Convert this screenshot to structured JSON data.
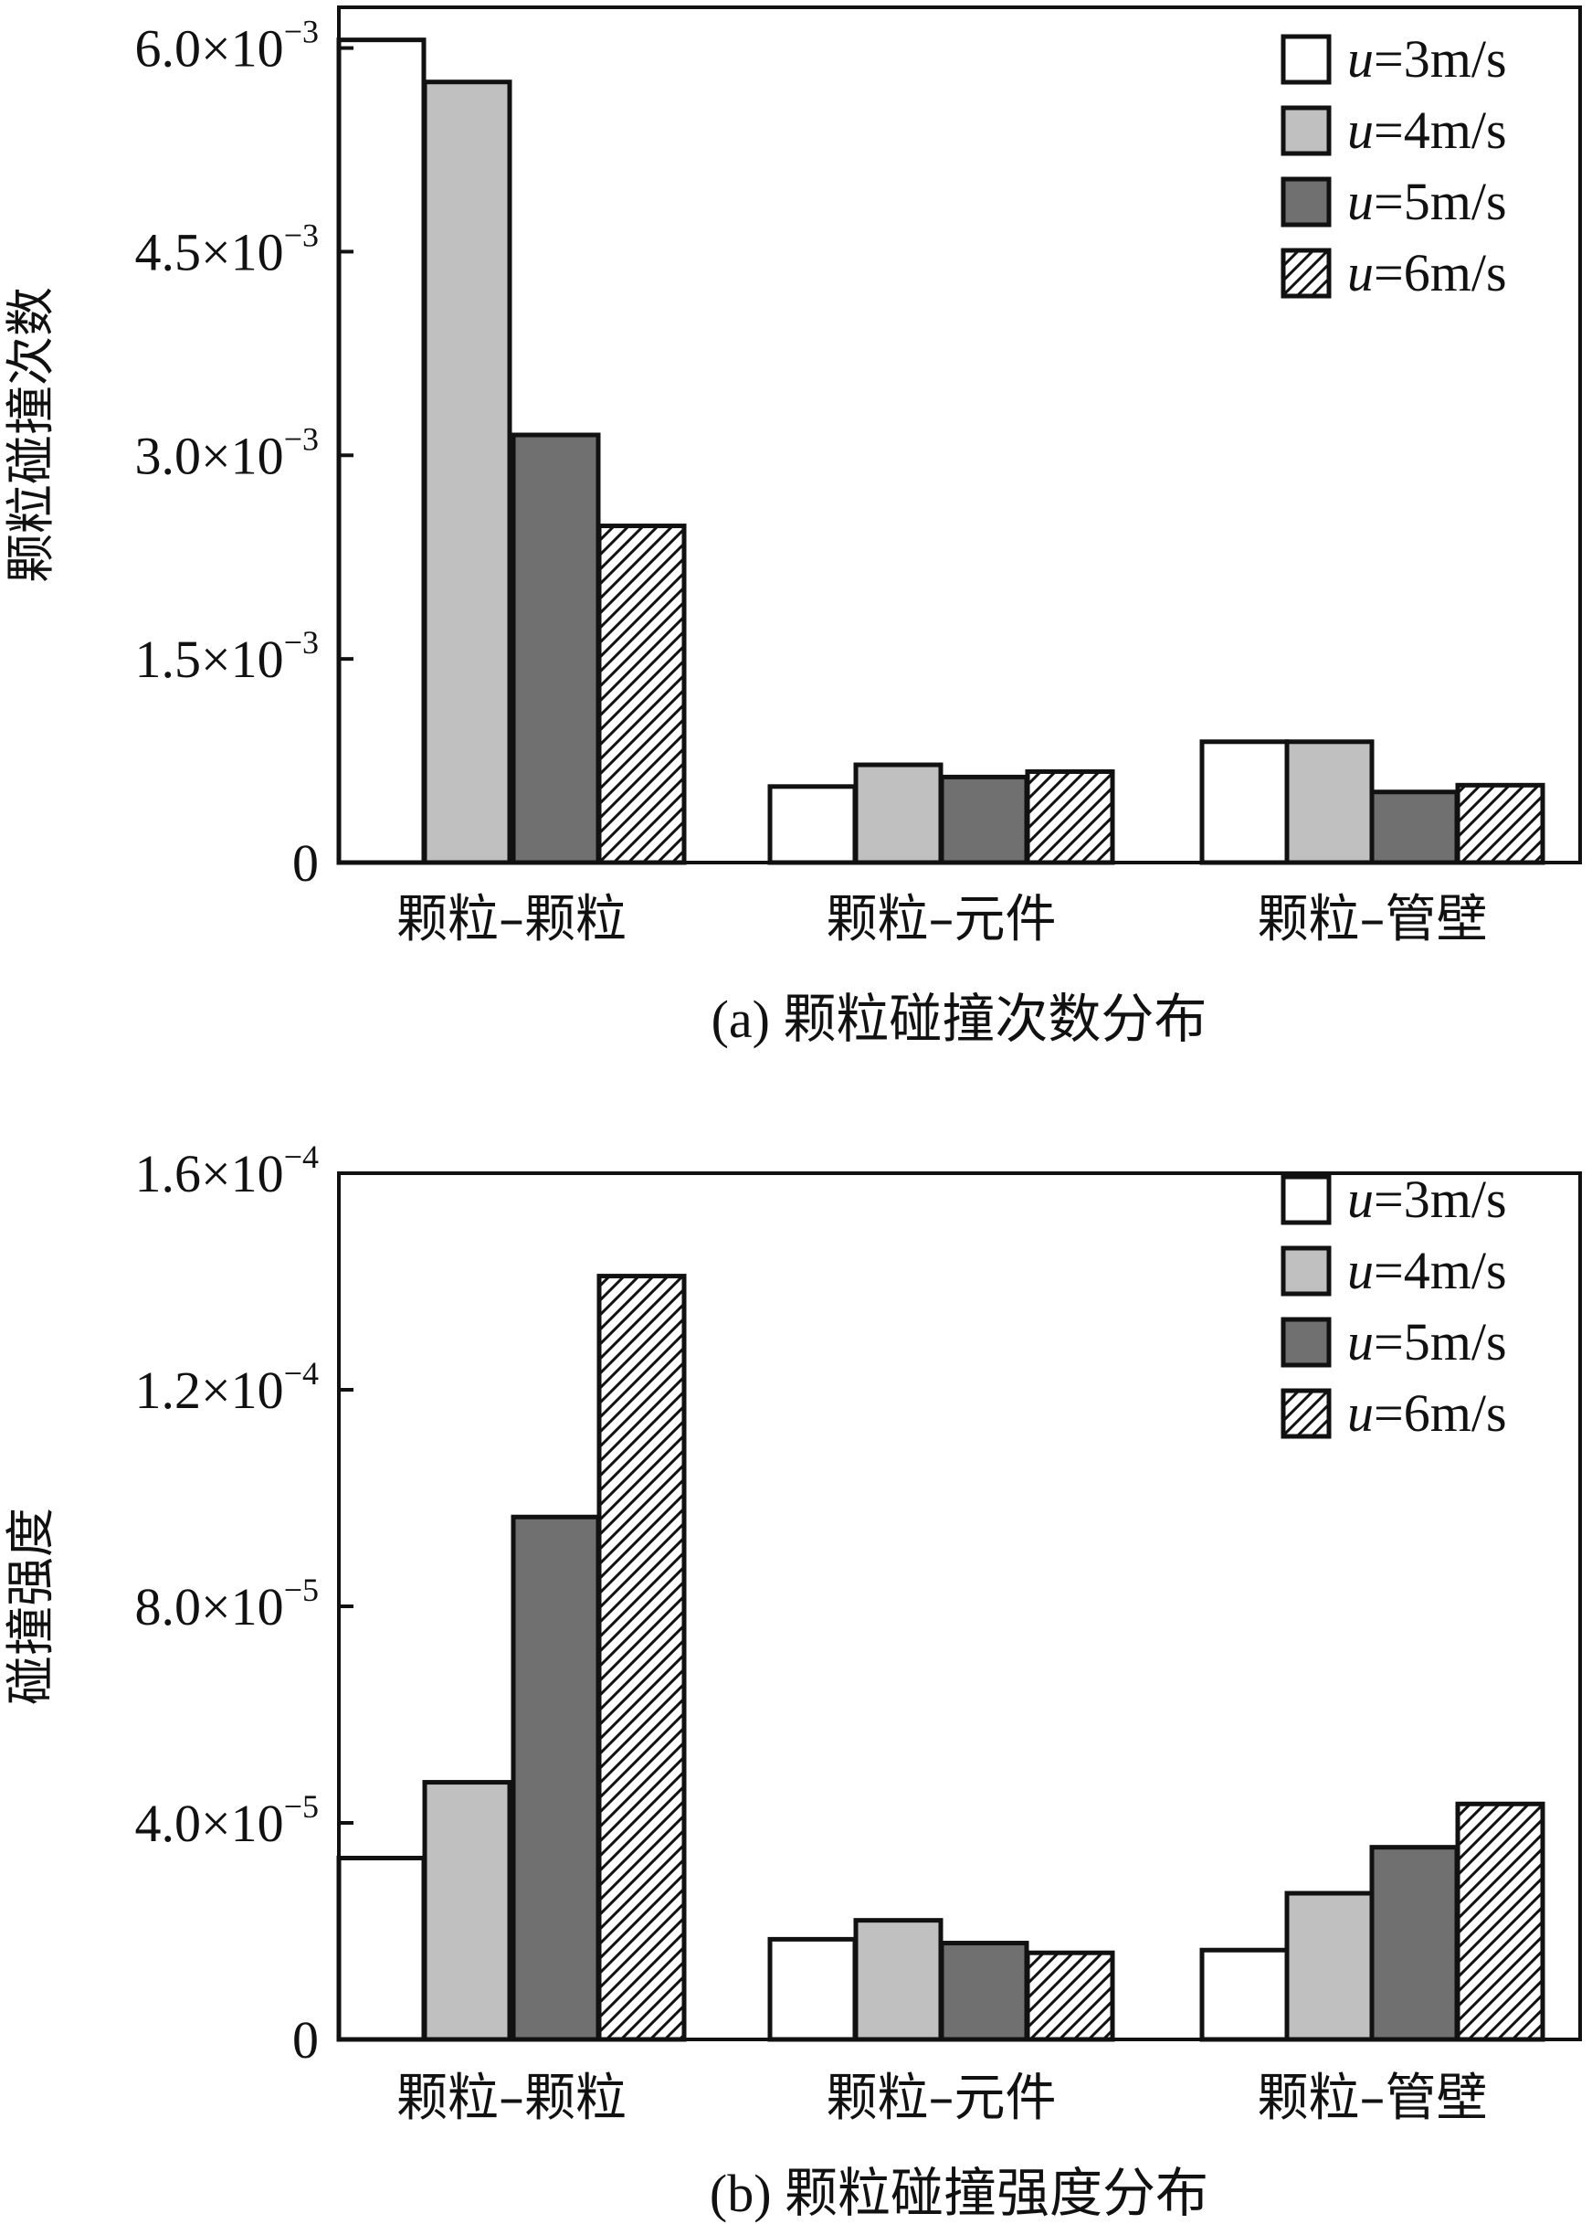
{
  "chart_data": [
    {
      "type": "bar",
      "caption": "(a) 颗粒碰撞次数分布",
      "ylabel": "颗粒碰撞次数",
      "categories": [
        "颗粒–颗粒",
        "颗粒–元件",
        "颗粒–管壁"
      ],
      "ylim": [
        0,
        0.0063
      ],
      "yticks": [
        {
          "value": 0,
          "mant": "0",
          "exp": ""
        },
        {
          "value": 0.0015,
          "mant": "1.5×10",
          "exp": "−3"
        },
        {
          "value": 0.003,
          "mant": "3.0×10",
          "exp": "−3"
        },
        {
          "value": 0.0045,
          "mant": "4.5×10",
          "exp": "−3"
        },
        {
          "value": 0.006,
          "mant": "6.0×10",
          "exp": "−3"
        }
      ],
      "series": [
        {
          "var": "u",
          "label": "=3m/s",
          "values": [
            0.00606,
            0.00056,
            0.00089
          ]
        },
        {
          "var": "u",
          "label": "=4m/s",
          "values": [
            0.00575,
            0.00072,
            0.00089
          ]
        },
        {
          "var": "u",
          "label": "=5m/s",
          "values": [
            0.00315,
            0.00063,
            0.00052
          ]
        },
        {
          "var": "u",
          "label": "=6m/s",
          "values": [
            0.00248,
            0.00067,
            0.00057
          ]
        }
      ],
      "legend": "top-right",
      "grid": false
    },
    {
      "type": "bar",
      "caption": "(b) 颗粒碰撞强度分布",
      "ylabel": "碰撞强度",
      "categories": [
        "颗粒–颗粒",
        "颗粒–元件",
        "颗粒–管壁"
      ],
      "ylim": [
        0,
        0.00016
      ],
      "yticks": [
        {
          "value": 0,
          "mant": "0",
          "exp": ""
        },
        {
          "value": 4e-05,
          "mant": "4.0×10",
          "exp": "−5"
        },
        {
          "value": 8e-05,
          "mant": "8.0×10",
          "exp": "−5"
        },
        {
          "value": 0.00012,
          "mant": "1.2×10",
          "exp": "−4"
        },
        {
          "value": 0.00016,
          "mant": "1.6×10",
          "exp": "−4"
        }
      ],
      "series": [
        {
          "var": "u",
          "label": "=3m/s",
          "values": [
            3.35e-05,
            1.85e-05,
            1.65e-05
          ]
        },
        {
          "var": "u",
          "label": "=4m/s",
          "values": [
            4.75e-05,
            2.2e-05,
            2.7e-05
          ]
        },
        {
          "var": "u",
          "label": "=5m/s",
          "values": [
            9.65e-05,
            1.78e-05,
            3.55e-05
          ]
        },
        {
          "var": "u",
          "label": "=6m/s",
          "values": [
            0.000141,
            1.6e-05,
            4.35e-05
          ]
        }
      ],
      "legend": "top-right",
      "grid": false
    }
  ],
  "colors": {
    "series_fills": [
      "#ffffff",
      "#c0c0c0",
      "#707070",
      "hatch"
    ],
    "stroke": "#111111"
  }
}
